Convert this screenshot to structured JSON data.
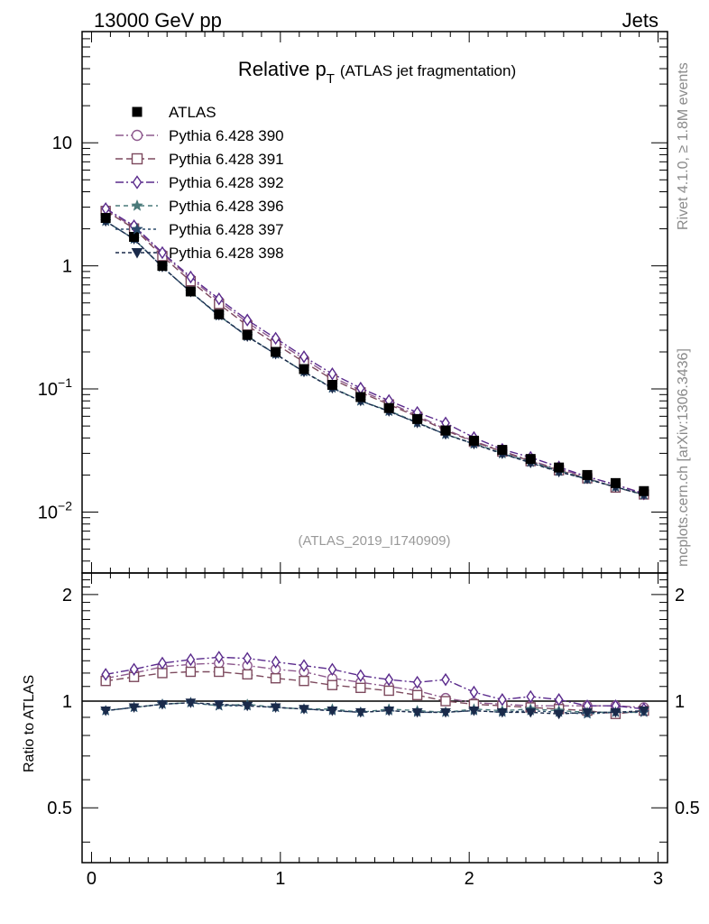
{
  "header": {
    "left": "13000 GeV pp",
    "right": "Jets"
  },
  "title": {
    "main": "Relative p",
    "sub": "T",
    "detail": "(ATLAS jet fragmentation)"
  },
  "side_labels": {
    "rivet": "Rivet 4.1.0, ≥ 1.8M events",
    "url": "mcplots.cern.ch [arXiv:1306.3436]"
  },
  "watermark": "(ATLAS_2019_I1740909)",
  "ratio_ylabel": "Ratio to ATLAS",
  "colors": {
    "data": "#000000",
    "s390": "#8e5a8e",
    "s391": "#7d4a5e",
    "s392": "#5a2a8c",
    "s396": "#4a7a7a",
    "s397": "#2a4a6a",
    "s398": "#1a2a4a"
  },
  "chart_data": {
    "type": "line",
    "title": "Relative pT (ATLAS jet fragmentation)",
    "xlabel": "",
    "xlim": [
      -0.05,
      3.05
    ],
    "main_ylim": [
      0.0032,
      80
    ],
    "main_yscale": "log",
    "main_yticks": [
      {
        "value": 10,
        "base": "10",
        "exp": ""
      },
      {
        "value": 1,
        "base": "1",
        "exp": ""
      },
      {
        "value": 0.1,
        "base": "10",
        "exp": "−1"
      },
      {
        "value": 0.01,
        "base": "10",
        "exp": "−2"
      }
    ],
    "ratio_ylim": [
      0.35,
      2.3
    ],
    "ratio_yscale": "log",
    "ratio_yticks": [
      {
        "value": 2,
        "label": "2"
      },
      {
        "value": 1,
        "label": "1"
      },
      {
        "value": 0.5,
        "label": "0.5"
      }
    ],
    "xticks": [
      {
        "value": 0,
        "label": "0"
      },
      {
        "value": 1,
        "label": "1"
      },
      {
        "value": 2,
        "label": "2"
      },
      {
        "value": 3,
        "label": "3"
      }
    ],
    "x": [
      0.075,
      0.225,
      0.375,
      0.525,
      0.675,
      0.825,
      0.975,
      1.125,
      1.275,
      1.425,
      1.575,
      1.725,
      1.875,
      2.025,
      2.175,
      2.325,
      2.475,
      2.625,
      2.775,
      2.925
    ],
    "data": {
      "name": "ATLAS",
      "values": [
        2.45,
        1.72,
        1.0,
        0.62,
        0.405,
        0.275,
        0.2,
        0.145,
        0.108,
        0.086,
        0.07,
        0.057,
        0.046,
        0.038,
        0.032,
        0.027,
        0.023,
        0.02,
        0.0172,
        0.0148
      ]
    },
    "series": [
      {
        "name": "Pythia 6.428 390",
        "key": "s390",
        "marker": "circle",
        "dash": "9,3,2,3",
        "ratio": [
          1.16,
          1.2,
          1.25,
          1.27,
          1.28,
          1.26,
          1.23,
          1.21,
          1.16,
          1.13,
          1.1,
          1.07,
          1.02,
          0.99,
          0.98,
          0.97,
          0.97,
          0.97,
          0.97,
          0.96
        ]
      },
      {
        "name": "Pythia 6.428 391",
        "key": "s391",
        "marker": "square",
        "dash": "8,4",
        "ratio": [
          1.14,
          1.17,
          1.2,
          1.21,
          1.21,
          1.19,
          1.16,
          1.14,
          1.11,
          1.09,
          1.07,
          1.04,
          1.0,
          0.98,
          0.97,
          0.96,
          0.95,
          0.94,
          0.92,
          0.94
        ]
      },
      {
        "name": "Pythia 6.428 392",
        "key": "s392",
        "marker": "diamond",
        "dash": "9,3,2,3",
        "ratio": [
          1.19,
          1.23,
          1.28,
          1.31,
          1.33,
          1.32,
          1.29,
          1.26,
          1.23,
          1.18,
          1.15,
          1.13,
          1.15,
          1.06,
          1.01,
          1.03,
          1.01,
          0.97,
          0.97,
          0.95
        ]
      },
      {
        "name": "Pythia 6.428 396",
        "key": "s396",
        "marker": "star",
        "dash": "5,4",
        "ratio": [
          0.94,
          0.96,
          0.98,
          0.99,
          0.97,
          0.98,
          0.96,
          0.95,
          0.95,
          0.93,
          0.95,
          0.94,
          0.93,
          0.95,
          0.94,
          0.95,
          0.94,
          0.93,
          0.93,
          0.93
        ]
      },
      {
        "name": "Pythia 6.428 397",
        "key": "s397",
        "marker": "star",
        "dash": "3,3",
        "ratio": [
          0.94,
          0.96,
          0.98,
          0.99,
          0.97,
          0.97,
          0.96,
          0.95,
          0.94,
          0.93,
          0.94,
          0.93,
          0.93,
          0.94,
          0.93,
          0.94,
          0.93,
          0.92,
          0.93,
          0.93
        ]
      },
      {
        "name": "Pythia 6.428 398",
        "key": "s398",
        "marker": "triangle-down",
        "dash": "4,3",
        "ratio": [
          0.94,
          0.96,
          0.98,
          0.99,
          0.98,
          0.97,
          0.96,
          0.95,
          0.94,
          0.93,
          0.94,
          0.93,
          0.93,
          0.94,
          0.93,
          0.93,
          0.92,
          0.93,
          0.93,
          0.94
        ]
      }
    ]
  }
}
